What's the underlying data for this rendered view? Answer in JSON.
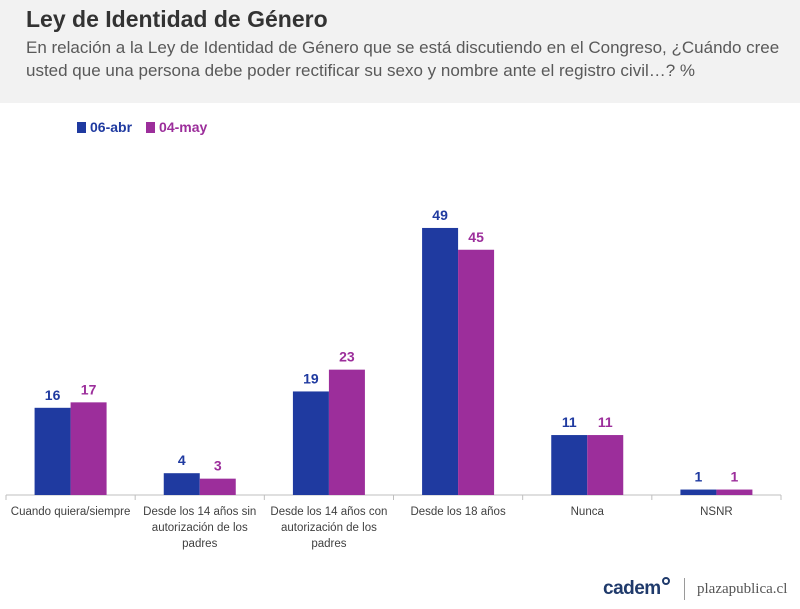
{
  "title": "Ley de Identidad de Género",
  "subtitle": "En relación a la Ley de Identidad de Género que se está discutiendo en el Congreso, ¿Cuándo cree usted que una persona debe poder rectificar su sexo y nombre ante el registro civil…? %",
  "footer": {
    "logo": "cadem",
    "site": "plazapublica.cl"
  },
  "chart_data": {
    "type": "bar",
    "categories": [
      "Cuando quiera/siempre",
      "Desde los 14 años sin autorización de los padres",
      "Desde los 14 años con autorización de los padres",
      "Desde los 18 años",
      "Nunca",
      "NSNR"
    ],
    "category_lines": [
      [
        "Cuando quiera/siempre"
      ],
      [
        "Desde los 14 años sin",
        "autorización de los",
        "padres"
      ],
      [
        "Desde los 14 años con",
        "autorización de los",
        "padres"
      ],
      [
        "Desde los 18 años"
      ],
      [
        "Nunca"
      ],
      [
        "NSNR"
      ]
    ],
    "series": [
      {
        "name": "06-abr",
        "values": [
          16,
          4,
          19,
          49,
          11,
          1
        ],
        "color": "#1f3aa0"
      },
      {
        "name": "04-may",
        "values": [
          17,
          3,
          23,
          45,
          11,
          1
        ],
        "color": "#9c2e9b"
      }
    ],
    "legend_position": "top-left",
    "data_labels": true,
    "grid": false,
    "ylim": [
      0,
      55
    ]
  }
}
